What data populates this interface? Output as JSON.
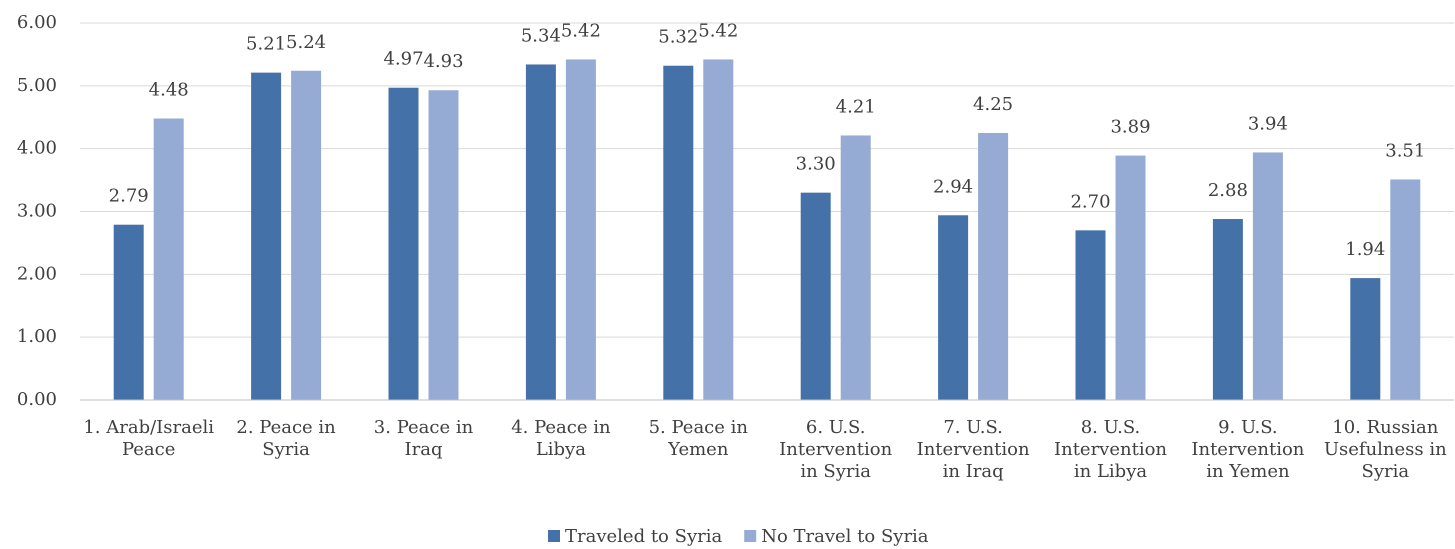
{
  "chart_data": {
    "type": "bar",
    "categories": [
      "1. Arab/Israeli Peace",
      "2. Peace in Syria",
      "3. Peace in Iraq",
      "4. Peace in Libya",
      "5. Peace in Yemen",
      "6. U.S. Intervention in Syria",
      "7. U.S. Intervention in Iraq",
      "8. U.S. Intervention in Libya",
      "9. U.S. Intervention in Yemen",
      "10. Russian Usefulness in Syria"
    ],
    "series": [
      {
        "name": "Traveled to Syria",
        "color": "#4472a8",
        "values": [
          2.79,
          5.21,
          4.97,
          5.34,
          5.32,
          3.3,
          2.94,
          2.7,
          2.88,
          1.94
        ],
        "value_labels": [
          "2.79",
          "5.21",
          "4.97",
          "5.34",
          "5.32",
          "3.30",
          "2.94",
          "2.70",
          "2.88",
          "1.94"
        ]
      },
      {
        "name": "No Travel to Syria",
        "color": "#95abd3",
        "values": [
          4.48,
          5.24,
          4.93,
          5.42,
          5.42,
          4.21,
          4.25,
          3.89,
          3.94,
          3.51
        ],
        "value_labels": [
          "4.48",
          "5.24",
          "4.93",
          "5.42",
          "5.42",
          "4.21",
          "4.25",
          "3.89",
          "3.94",
          "3.51"
        ]
      }
    ],
    "ylim": [
      0,
      6
    ],
    "yticks": [
      {
        "value": 0,
        "label": "0.00"
      },
      {
        "value": 1,
        "label": "1.00"
      },
      {
        "value": 2,
        "label": "2.00"
      },
      {
        "value": 3,
        "label": "3.00"
      },
      {
        "value": 4,
        "label": "4.00"
      },
      {
        "value": 5,
        "label": "5.00"
      },
      {
        "value": 6,
        "label": "6.00"
      }
    ],
    "grid": true,
    "legend": "bottom"
  }
}
